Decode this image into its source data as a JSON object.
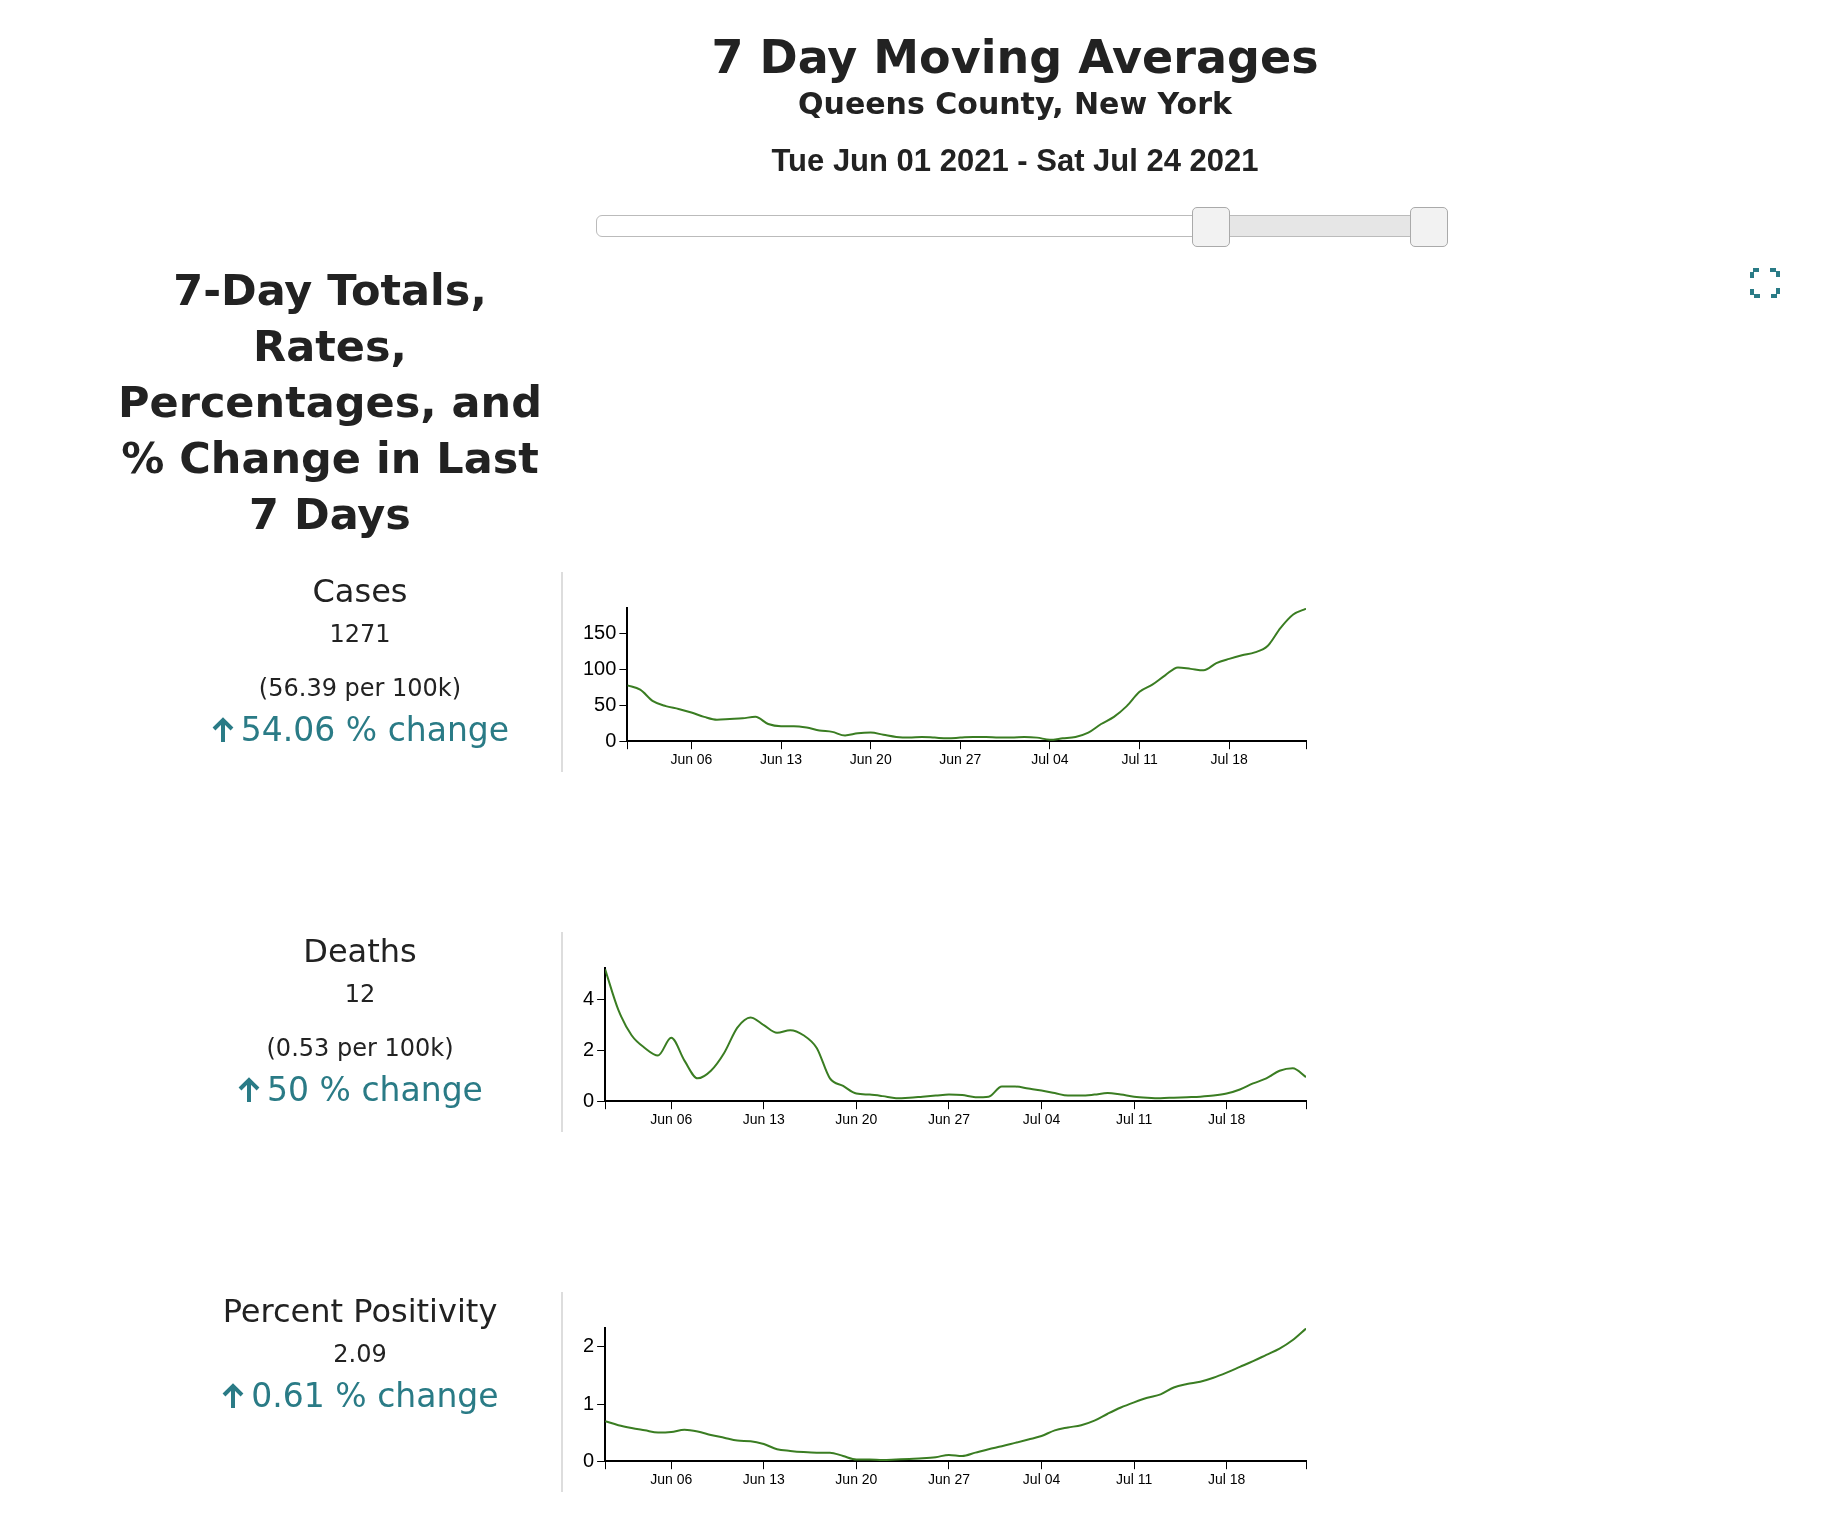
{
  "chart_data": [
    {
      "type": "other",
      "title": "7 Day Moving Averages",
      "subtitle": "Queens County, New York",
      "annotations": [
        "Tue Jun 01 2021 - Sat Jul 24 2021",
        "7-Day Totals, Rates, Percentages, and % Change in Last 7 Days"
      ]
    },
    {
      "type": "line",
      "title": "Cases",
      "annotations": [
        "1271",
        "(56.39 per 100k)",
        "54.06 % change"
      ],
      "color": "#3a7d22",
      "marker": "none",
      "grid": false,
      "legend": false,
      "x": [
        "2021-06-01",
        "2021-06-02",
        "2021-06-03",
        "2021-06-04",
        "2021-06-05",
        "2021-06-06",
        "2021-06-07",
        "2021-06-08",
        "2021-06-09",
        "2021-06-10",
        "2021-06-11",
        "2021-06-12",
        "2021-06-13",
        "2021-06-14",
        "2021-06-15",
        "2021-06-16",
        "2021-06-17",
        "2021-06-18",
        "2021-06-19",
        "2021-06-20",
        "2021-06-21",
        "2021-06-22",
        "2021-06-23",
        "2021-06-24",
        "2021-06-25",
        "2021-06-26",
        "2021-06-27",
        "2021-06-28",
        "2021-06-29",
        "2021-06-30",
        "2021-07-01",
        "2021-07-02",
        "2021-07-03",
        "2021-07-04",
        "2021-07-05",
        "2021-07-06",
        "2021-07-07",
        "2021-07-08",
        "2021-07-09",
        "2021-07-10",
        "2021-07-11",
        "2021-07-12",
        "2021-07-13",
        "2021-07-14",
        "2021-07-15",
        "2021-07-16",
        "2021-07-17",
        "2021-07-18",
        "2021-07-19",
        "2021-07-20",
        "2021-07-21",
        "2021-07-22",
        "2021-07-23",
        "2021-07-24"
      ],
      "values": [
        78,
        72,
        56,
        49,
        45,
        40,
        34,
        30,
        31,
        32,
        34,
        24,
        21,
        21,
        19,
        15,
        13,
        8,
        11,
        12,
        9,
        6,
        5,
        6,
        5,
        4,
        5,
        6,
        6,
        5,
        5,
        6,
        5,
        2,
        4,
        6,
        12,
        24,
        34,
        49,
        69,
        79,
        92,
        103,
        101,
        99,
        109,
        115,
        120,
        124,
        133,
        158,
        177,
        185
      ],
      "xlim": [
        "2021-06-01",
        "2021-07-24"
      ],
      "xticks": [
        {
          "value": "2021-06-01",
          "label": null
        },
        {
          "value": "2021-06-06",
          "label": "Jun 06"
        },
        {
          "value": "2021-06-13",
          "label": "Jun 13"
        },
        {
          "value": "2021-06-20",
          "label": "Jun 20"
        },
        {
          "value": "2021-06-27",
          "label": "Jun 27"
        },
        {
          "value": "2021-07-04",
          "label": "Jul 04"
        },
        {
          "value": "2021-07-11",
          "label": "Jul 11"
        },
        {
          "value": "2021-07-18",
          "label": "Jul 18"
        },
        {
          "value": "2021-07-24",
          "label": null
        }
      ],
      "ylim": [
        0,
        186
      ],
      "yticks": [
        0,
        50,
        100,
        150
      ]
    },
    {
      "type": "line",
      "title": "Deaths",
      "annotations": [
        "12",
        "(0.53 per 100k)",
        "50 % change"
      ],
      "color": "#3a7d22",
      "marker": "none",
      "grid": false,
      "legend": false,
      "x": [
        "2021-06-01",
        "2021-06-02",
        "2021-06-03",
        "2021-06-04",
        "2021-06-05",
        "2021-06-06",
        "2021-06-07",
        "2021-06-08",
        "2021-06-09",
        "2021-06-10",
        "2021-06-11",
        "2021-06-12",
        "2021-06-13",
        "2021-06-14",
        "2021-06-15",
        "2021-06-16",
        "2021-06-17",
        "2021-06-18",
        "2021-06-19",
        "2021-06-20",
        "2021-06-21",
        "2021-06-22",
        "2021-06-23",
        "2021-06-24",
        "2021-06-25",
        "2021-06-26",
        "2021-06-27",
        "2021-06-28",
        "2021-06-29",
        "2021-06-30",
        "2021-07-01",
        "2021-07-02",
        "2021-07-03",
        "2021-07-04",
        "2021-07-05",
        "2021-07-06",
        "2021-07-07",
        "2021-07-08",
        "2021-07-09",
        "2021-07-10",
        "2021-07-11",
        "2021-07-12",
        "2021-07-13",
        "2021-07-14",
        "2021-07-15",
        "2021-07-16",
        "2021-07-17",
        "2021-07-18",
        "2021-07-19",
        "2021-07-20",
        "2021-07-21",
        "2021-07-22",
        "2021-07-23",
        "2021-07-24"
      ],
      "values": [
        5.2,
        3.6,
        2.6,
        2.1,
        1.8,
        2.5,
        1.6,
        0.9,
        1.2,
        1.9,
        2.9,
        3.3,
        3.0,
        2.7,
        2.8,
        2.6,
        2.1,
        0.9,
        0.6,
        0.3,
        0.26,
        0.2,
        0.12,
        0.14,
        0.18,
        0.22,
        0.26,
        0.24,
        0.16,
        0.18,
        0.58,
        0.58,
        0.5,
        0.42,
        0.32,
        0.22,
        0.22,
        0.26,
        0.32,
        0.26,
        0.18,
        0.14,
        0.12,
        0.14,
        0.16,
        0.18,
        0.22,
        0.3,
        0.46,
        0.7,
        0.9,
        1.2,
        1.3,
        0.95
      ],
      "xlim": [
        "2021-06-01",
        "2021-07-24"
      ],
      "xticks": [
        {
          "value": "2021-06-01",
          "label": null
        },
        {
          "value": "2021-06-06",
          "label": "Jun 06"
        },
        {
          "value": "2021-06-13",
          "label": "Jun 13"
        },
        {
          "value": "2021-06-20",
          "label": "Jun 20"
        },
        {
          "value": "2021-06-27",
          "label": "Jun 27"
        },
        {
          "value": "2021-07-04",
          "label": "Jul 04"
        },
        {
          "value": "2021-07-11",
          "label": "Jul 11"
        },
        {
          "value": "2021-07-18",
          "label": "Jul 18"
        },
        {
          "value": "2021-07-24",
          "label": null
        }
      ],
      "ylim": [
        0,
        5.25
      ],
      "yticks": [
        0,
        2,
        4
      ]
    },
    {
      "type": "line",
      "title": "Percent Positivity",
      "annotations": [
        "2.09",
        "0.61 % change"
      ],
      "color": "#3a7d22",
      "marker": "none",
      "grid": false,
      "legend": false,
      "x": [
        "2021-06-01",
        "2021-06-02",
        "2021-06-03",
        "2021-06-04",
        "2021-06-05",
        "2021-06-06",
        "2021-06-07",
        "2021-06-08",
        "2021-06-09",
        "2021-06-10",
        "2021-06-11",
        "2021-06-12",
        "2021-06-13",
        "2021-06-14",
        "2021-06-15",
        "2021-06-16",
        "2021-06-17",
        "2021-06-18",
        "2021-06-19",
        "2021-06-20",
        "2021-06-21",
        "2021-06-22",
        "2021-06-23",
        "2021-06-24",
        "2021-06-25",
        "2021-06-26",
        "2021-06-27",
        "2021-06-28",
        "2021-06-29",
        "2021-06-30",
        "2021-07-01",
        "2021-07-02",
        "2021-07-03",
        "2021-07-04",
        "2021-07-05",
        "2021-07-06",
        "2021-07-07",
        "2021-07-08",
        "2021-07-09",
        "2021-07-10",
        "2021-07-11",
        "2021-07-12",
        "2021-07-13",
        "2021-07-14",
        "2021-07-15",
        "2021-07-16",
        "2021-07-17",
        "2021-07-18",
        "2021-07-19",
        "2021-07-20",
        "2021-07-21",
        "2021-07-22",
        "2021-07-23",
        "2021-07-24"
      ],
      "values": [
        0.7,
        0.63,
        0.58,
        0.54,
        0.5,
        0.51,
        0.55,
        0.52,
        0.46,
        0.41,
        0.36,
        0.35,
        0.3,
        0.21,
        0.18,
        0.16,
        0.15,
        0.15,
        0.09,
        0.03,
        0.03,
        0.02,
        0.03,
        0.04,
        0.05,
        0.07,
        0.11,
        0.09,
        0.15,
        0.21,
        0.26,
        0.32,
        0.38,
        0.44,
        0.54,
        0.59,
        0.63,
        0.71,
        0.83,
        0.94,
        1.03,
        1.11,
        1.17,
        1.29,
        1.35,
        1.39,
        1.46,
        1.55,
        1.65,
        1.75,
        1.86,
        1.97,
        2.12,
        2.32
      ],
      "xlim": [
        "2021-06-01",
        "2021-07-24"
      ],
      "xticks": [
        {
          "value": "2021-06-01",
          "label": null
        },
        {
          "value": "2021-06-06",
          "label": "Jun 06"
        },
        {
          "value": "2021-06-13",
          "label": "Jun 13"
        },
        {
          "value": "2021-06-20",
          "label": "Jun 20"
        },
        {
          "value": "2021-06-27",
          "label": "Jun 27"
        },
        {
          "value": "2021-07-04",
          "label": "Jul 04"
        },
        {
          "value": "2021-07-11",
          "label": "Jul 11"
        },
        {
          "value": "2021-07-18",
          "label": "Jul 18"
        },
        {
          "value": "2021-07-24",
          "label": null
        }
      ],
      "ylim": [
        0,
        2.33
      ],
      "yticks": [
        0,
        1,
        2
      ]
    }
  ]
}
